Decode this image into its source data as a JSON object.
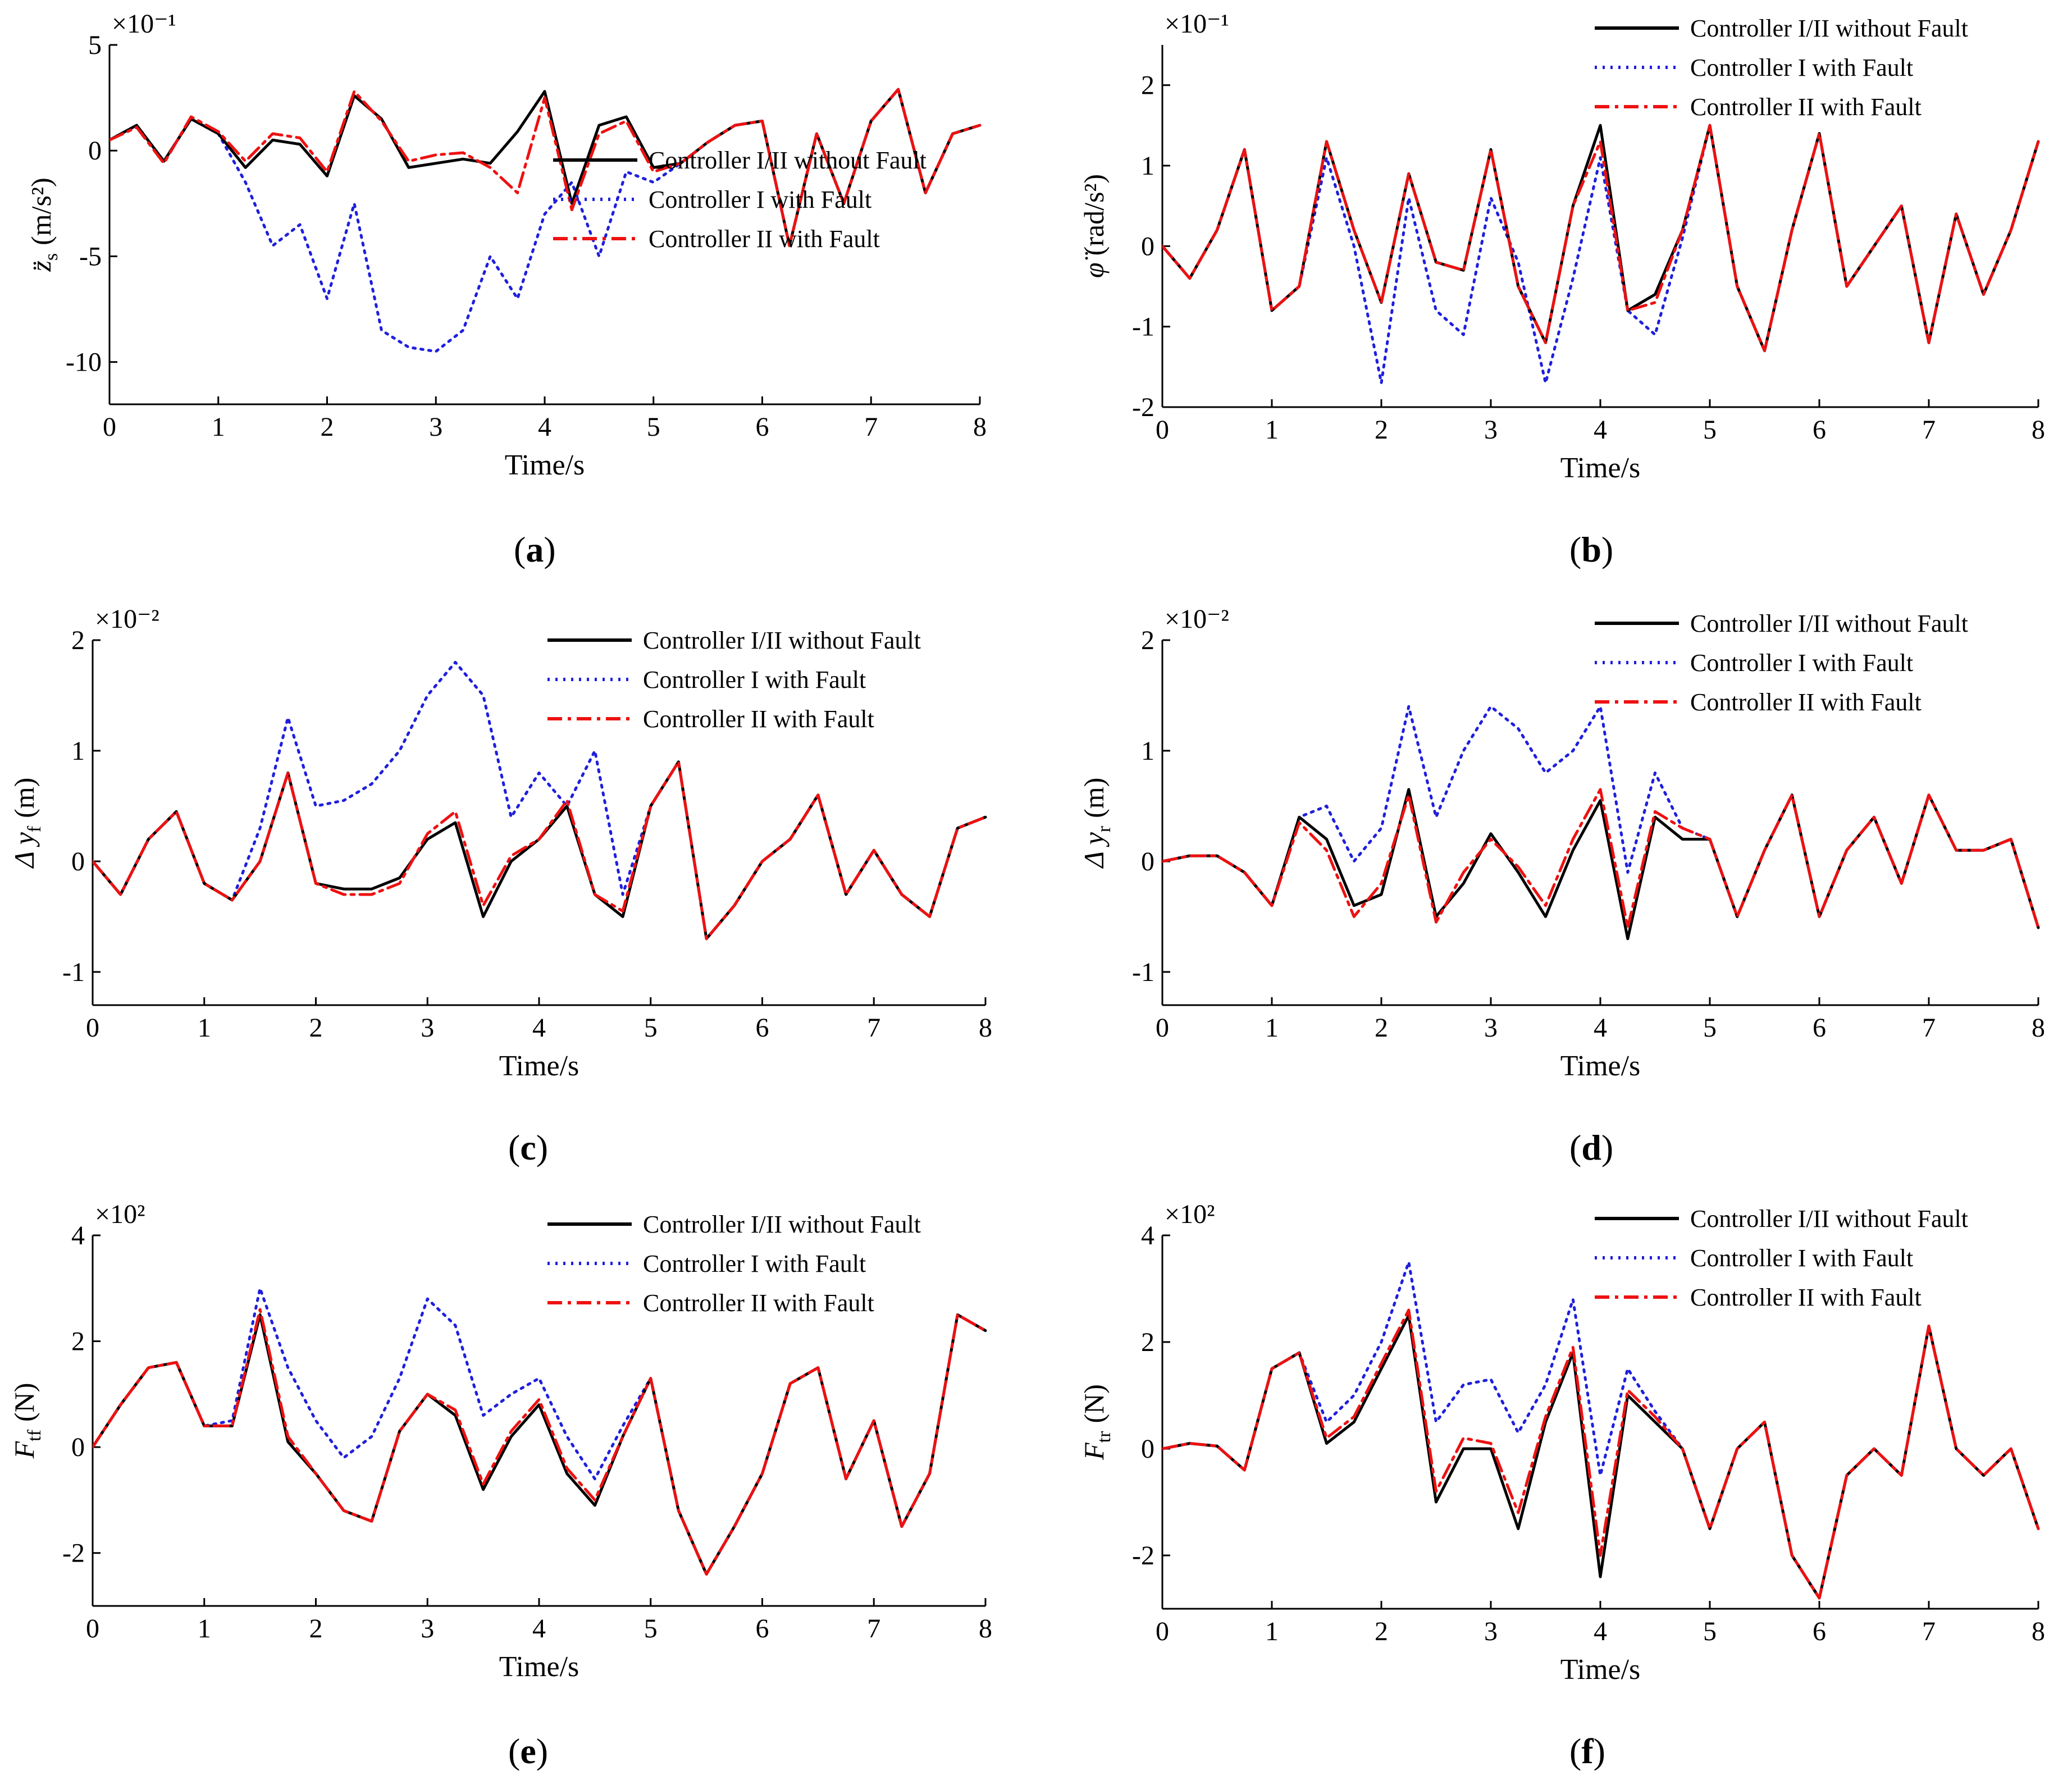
{
  "figure": {
    "x_axis_label": "Time/s",
    "legend_labels": [
      "Controller I/II without Fault",
      "Controller I with Fault",
      "Controller II with Fault"
    ],
    "colors": {
      "without_fault": "#000000",
      "controller_I_fault": "#1f1fdd",
      "controller_II_fault": "#ee1111"
    }
  },
  "chart_data": [
    {
      "id": "a",
      "type": "line",
      "caption": "a",
      "ylabel_main": "z̈",
      "ylabel_sub": "s",
      "ylabel_unit": "(m/s²)",
      "exponent": "×10⁻¹",
      "xlim": [
        0,
        8
      ],
      "ylim": [
        -12,
        5
      ],
      "xticks": [
        0,
        1,
        2,
        3,
        4,
        5,
        6,
        7,
        8
      ],
      "yticks": [
        5,
        0,
        -5,
        -10
      ],
      "legend_position": "center-right",
      "x": [
        0,
        0.25,
        0.5,
        0.75,
        1,
        1.25,
        1.5,
        1.75,
        2,
        2.25,
        2.5,
        2.75,
        3,
        3.25,
        3.5,
        3.75,
        4,
        4.25,
        4.5,
        4.75,
        5,
        5.25,
        5.5,
        5.75,
        6,
        6.25,
        6.5,
        6.75,
        7,
        7.25,
        7.5,
        7.75,
        8
      ],
      "series": [
        {
          "name": "Controller I/II without Fault",
          "values": [
            0.5,
            1.2,
            -0.5,
            1.5,
            0.8,
            -0.8,
            0.5,
            0.3,
            -1.2,
            2.6,
            1.5,
            -0.8,
            -0.6,
            -0.4,
            -0.6,
            0.9,
            2.8,
            -2.5,
            1.2,
            1.6,
            -0.8,
            -0.6,
            0.4,
            1.2,
            1.4,
            -4.5,
            0.8,
            -2.5,
            1.4,
            2.9,
            -2,
            0.8,
            1.2
          ]
        },
        {
          "name": "Controller I with Fault",
          "values": [
            0.5,
            1.2,
            -0.5,
            1.5,
            0.8,
            -1.5,
            -4.5,
            -3.5,
            -7,
            -2.5,
            -8.5,
            -9.3,
            -9.5,
            -8.5,
            -5,
            -7,
            -3,
            -1.5,
            -5,
            -1,
            -1.5,
            -0.6,
            0.4,
            1.2,
            1.4,
            -4.5,
            0.8,
            -2.5,
            1.4,
            2.9,
            -2,
            0.8,
            1.2
          ]
        },
        {
          "name": "Controller II with Fault",
          "values": [
            0.5,
            1.1,
            -0.6,
            1.6,
            0.9,
            -0.5,
            0.8,
            0.6,
            -1,
            2.8,
            1.4,
            -0.5,
            -0.2,
            -0.1,
            -0.8,
            -2,
            2.5,
            -2.8,
            0.8,
            1.4,
            -1,
            -0.6,
            0.4,
            1.2,
            1.4,
            -4.5,
            0.8,
            -2.5,
            1.4,
            2.9,
            -2,
            0.8,
            1.2
          ]
        }
      ]
    },
    {
      "id": "b",
      "type": "line",
      "caption": "b",
      "ylabel_main": "φ̈",
      "ylabel_sub": "",
      "ylabel_unit": "(rad/s²)",
      "exponent": "×10⁻¹",
      "xlim": [
        0,
        8
      ],
      "ylim": [
        -2,
        2.5
      ],
      "xticks": [
        0,
        1,
        2,
        3,
        4,
        5,
        6,
        7,
        8
      ],
      "yticks": [
        2,
        1,
        0,
        -1,
        -2
      ],
      "legend_position": "top-right",
      "x": [
        0,
        0.25,
        0.5,
        0.75,
        1,
        1.25,
        1.5,
        1.75,
        2,
        2.25,
        2.5,
        2.75,
        3,
        3.25,
        3.5,
        3.75,
        4,
        4.25,
        4.5,
        4.75,
        5,
        5.25,
        5.5,
        5.75,
        6,
        6.25,
        6.5,
        6.75,
        7,
        7.25,
        7.5,
        7.75,
        8
      ],
      "series": [
        {
          "name": "Controller I/II without Fault",
          "values": [
            0,
            -0.4,
            0.2,
            1.2,
            -0.8,
            -0.5,
            1.3,
            0.2,
            -0.7,
            0.9,
            -0.2,
            -0.3,
            1.2,
            -0.5,
            -1.2,
            0.5,
            1.5,
            -0.8,
            -0.6,
            0.2,
            1.5,
            -0.5,
            -1.3,
            0.2,
            1.4,
            -0.5,
            0,
            0.5,
            -1.2,
            0.4,
            -0.6,
            0.2,
            1.3
          ]
        },
        {
          "name": "Controller I with Fault",
          "values": [
            0,
            -0.4,
            0.2,
            1.2,
            -0.8,
            -0.5,
            1.1,
            0,
            -1.7,
            0.6,
            -0.8,
            -1.1,
            0.6,
            -0.2,
            -1.7,
            -0.4,
            1.1,
            -0.8,
            -1.1,
            0.1,
            1.5,
            -0.5,
            -1.3,
            0.2,
            1.4,
            -0.5,
            0,
            0.5,
            -1.2,
            0.4,
            -0.6,
            0.2,
            1.3
          ]
        },
        {
          "name": "Controller II with Fault",
          "values": [
            0,
            -0.4,
            0.2,
            1.2,
            -0.8,
            -0.5,
            1.3,
            0.2,
            -0.7,
            0.9,
            -0.2,
            -0.3,
            1.2,
            -0.5,
            -1.2,
            0.5,
            1.3,
            -0.8,
            -0.7,
            0.2,
            1.5,
            -0.5,
            -1.3,
            0.2,
            1.4,
            -0.5,
            0,
            0.5,
            -1.2,
            0.4,
            -0.6,
            0.2,
            1.3
          ]
        }
      ]
    },
    {
      "id": "c",
      "type": "line",
      "caption": "c",
      "ylabel_main": "Δ y",
      "ylabel_sub": "f",
      "ylabel_unit": "(m)",
      "exponent": "×10⁻²",
      "xlim": [
        0,
        8
      ],
      "ylim": [
        -1.3,
        2
      ],
      "xticks": [
        0,
        1,
        2,
        3,
        4,
        5,
        6,
        7,
        8
      ],
      "yticks": [
        2,
        1,
        0,
        -1
      ],
      "legend_position": "top-right",
      "x": [
        0,
        0.25,
        0.5,
        0.75,
        1,
        1.25,
        1.5,
        1.75,
        2,
        2.25,
        2.5,
        2.75,
        3,
        3.25,
        3.5,
        3.75,
        4,
        4.25,
        4.5,
        4.75,
        5,
        5.25,
        5.5,
        5.75,
        6,
        6.25,
        6.5,
        6.75,
        7,
        7.25,
        7.5,
        7.75,
        8
      ],
      "series": [
        {
          "name": "Controller I/II without Fault",
          "values": [
            0,
            -0.3,
            0.2,
            0.45,
            -0.2,
            -0.35,
            0,
            0.8,
            -0.2,
            -0.25,
            -0.25,
            -0.15,
            0.2,
            0.35,
            -0.5,
            0,
            0.2,
            0.5,
            -0.3,
            -0.5,
            0.5,
            0.9,
            -0.7,
            -0.4,
            0,
            0.2,
            0.6,
            -0.3,
            0.1,
            -0.3,
            -0.5,
            0.3,
            0.4
          ]
        },
        {
          "name": "Controller I with Fault",
          "values": [
            0,
            -0.3,
            0.2,
            0.45,
            -0.2,
            -0.35,
            0.3,
            1.3,
            0.5,
            0.55,
            0.7,
            1,
            1.5,
            1.8,
            1.5,
            0.4,
            0.8,
            0.5,
            1,
            -0.3,
            0.5,
            0.9,
            -0.7,
            -0.4,
            0,
            0.2,
            0.6,
            -0.3,
            0.1,
            -0.3,
            -0.5,
            0.3,
            0.4
          ]
        },
        {
          "name": "Controller II with Fault",
          "values": [
            0,
            -0.3,
            0.2,
            0.45,
            -0.2,
            -0.35,
            0,
            0.8,
            -0.2,
            -0.3,
            -0.3,
            -0.2,
            0.25,
            0.45,
            -0.4,
            0.05,
            0.2,
            0.55,
            -0.3,
            -0.45,
            0.5,
            0.9,
            -0.7,
            -0.4,
            0,
            0.2,
            0.6,
            -0.3,
            0.1,
            -0.3,
            -0.5,
            0.3,
            0.4
          ]
        }
      ]
    },
    {
      "id": "d",
      "type": "line",
      "caption": "d",
      "ylabel_main": "Δ y",
      "ylabel_sub": "r",
      "ylabel_unit": "(m)",
      "exponent": "×10⁻²",
      "xlim": [
        0,
        8
      ],
      "ylim": [
        -1.3,
        2
      ],
      "xticks": [
        0,
        1,
        2,
        3,
        4,
        5,
        6,
        7,
        8
      ],
      "yticks": [
        2,
        1,
        0,
        -1
      ],
      "legend_position": "top-right",
      "x": [
        0,
        0.25,
        0.5,
        0.75,
        1,
        1.25,
        1.5,
        1.75,
        2,
        2.25,
        2.5,
        2.75,
        3,
        3.25,
        3.5,
        3.75,
        4,
        4.25,
        4.5,
        4.75,
        5,
        5.25,
        5.5,
        5.75,
        6,
        6.25,
        6.5,
        6.75,
        7,
        7.25,
        7.5,
        7.75,
        8
      ],
      "series": [
        {
          "name": "Controller I/II without Fault",
          "values": [
            0,
            0.05,
            0.05,
            -0.1,
            -0.4,
            0.4,
            0.2,
            -0.4,
            -0.3,
            0.65,
            -0.5,
            -0.2,
            0.25,
            -0.1,
            -0.5,
            0.1,
            0.55,
            -0.7,
            0.4,
            0.2,
            0.2,
            -0.5,
            0.1,
            0.6,
            -0.5,
            0.1,
            0.4,
            -0.2,
            0.6,
            0.1,
            0.1,
            0.2,
            -0.6
          ]
        },
        {
          "name": "Controller I with Fault",
          "values": [
            0,
            0.05,
            0.05,
            -0.1,
            -0.4,
            0.4,
            0.5,
            0,
            0.3,
            1.4,
            0.4,
            1,
            1.4,
            1.2,
            0.8,
            1,
            1.4,
            -0.1,
            0.8,
            0.3,
            0.2,
            -0.5,
            0.1,
            0.6,
            -0.5,
            0.1,
            0.4,
            -0.2,
            0.6,
            0.1,
            0.1,
            0.2,
            -0.6
          ]
        },
        {
          "name": "Controller II with Fault",
          "values": [
            0,
            0.05,
            0.05,
            -0.1,
            -0.4,
            0.35,
            0.1,
            -0.5,
            -0.2,
            0.6,
            -0.55,
            -0.1,
            0.2,
            -0.05,
            -0.4,
            0.2,
            0.65,
            -0.6,
            0.45,
            0.3,
            0.2,
            -0.5,
            0.1,
            0.6,
            -0.5,
            0.1,
            0.4,
            -0.2,
            0.6,
            0.1,
            0.1,
            0.2,
            -0.6
          ]
        }
      ]
    },
    {
      "id": "e",
      "type": "line",
      "caption": "e",
      "ylabel_main": "F",
      "ylabel_sub": "tf",
      "ylabel_unit": "(N)",
      "exponent": "×10²",
      "xlim": [
        0,
        8
      ],
      "ylim": [
        -3,
        4
      ],
      "xticks": [
        0,
        1,
        2,
        3,
        4,
        5,
        6,
        7,
        8
      ],
      "yticks": [
        4,
        2,
        0,
        -2
      ],
      "legend_position": "top-right",
      "x": [
        0,
        0.25,
        0.5,
        0.75,
        1,
        1.25,
        1.5,
        1.75,
        2,
        2.25,
        2.5,
        2.75,
        3,
        3.25,
        3.5,
        3.75,
        4,
        4.25,
        4.5,
        4.75,
        5,
        5.25,
        5.5,
        5.75,
        6,
        6.25,
        6.5,
        6.75,
        7,
        7.25,
        7.5,
        7.75,
        8
      ],
      "series": [
        {
          "name": "Controller I/II without Fault",
          "values": [
            0,
            0.8,
            1.5,
            1.6,
            0.4,
            0.4,
            2.5,
            0.1,
            -0.5,
            -1.2,
            -1.4,
            0.3,
            1,
            0.6,
            -0.8,
            0.2,
            0.8,
            -0.5,
            -1.1,
            0.2,
            1.3,
            -1.2,
            -2.4,
            -1.5,
            -0.5,
            1.2,
            1.5,
            -0.6,
            0.5,
            -1.5,
            -0.5,
            2.5,
            2.2
          ]
        },
        {
          "name": "Controller I with Fault",
          "values": [
            0,
            0.8,
            1.5,
            1.6,
            0.4,
            0.5,
            3,
            1.5,
            0.5,
            -0.2,
            0.2,
            1.3,
            2.8,
            2.3,
            0.6,
            1,
            1.3,
            0.2,
            -0.6,
            0.4,
            1.3,
            -1.2,
            -2.4,
            -1.5,
            -0.5,
            1.2,
            1.5,
            -0.6,
            0.5,
            -1.5,
            -0.5,
            2.5,
            2.2
          ]
        },
        {
          "name": "Controller II with Fault",
          "values": [
            0,
            0.8,
            1.5,
            1.6,
            0.4,
            0.4,
            2.6,
            0.2,
            -0.5,
            -1.2,
            -1.4,
            0.3,
            1,
            0.7,
            -0.7,
            0.3,
            0.9,
            -0.4,
            -1,
            0.2,
            1.3,
            -1.2,
            -2.4,
            -1.5,
            -0.5,
            1.2,
            1.5,
            -0.6,
            0.5,
            -1.5,
            -0.5,
            2.5,
            2.2
          ]
        }
      ]
    },
    {
      "id": "f",
      "type": "line",
      "caption": "f",
      "ylabel_main": "F",
      "ylabel_sub": "tr",
      "ylabel_unit": "(N)",
      "exponent": "×10²",
      "xlim": [
        0,
        8
      ],
      "ylim": [
        -3,
        4
      ],
      "xticks": [
        0,
        1,
        2,
        3,
        4,
        5,
        6,
        7,
        8
      ],
      "yticks": [
        4,
        2,
        0,
        -2
      ],
      "legend_position": "top-right",
      "x": [
        0,
        0.25,
        0.5,
        0.75,
        1,
        1.25,
        1.5,
        1.75,
        2,
        2.25,
        2.5,
        2.75,
        3,
        3.25,
        3.5,
        3.75,
        4,
        4.25,
        4.5,
        4.75,
        5,
        5.25,
        5.5,
        5.75,
        6,
        6.25,
        6.5,
        6.75,
        7,
        7.25,
        7.5,
        7.75,
        8
      ],
      "series": [
        {
          "name": "Controller I/II without Fault",
          "values": [
            0,
            0.1,
            0.05,
            -0.4,
            1.5,
            1.8,
            0.1,
            0.5,
            1.5,
            2.5,
            -1,
            0,
            0,
            -1.5,
            0.5,
            1.8,
            -2.4,
            1,
            0.5,
            0,
            -1.5,
            0,
            0.5,
            -2,
            -2.8,
            -0.5,
            0,
            -0.5,
            2.3,
            0,
            -0.5,
            0,
            -1.5
          ]
        },
        {
          "name": "Controller I with Fault",
          "values": [
            0,
            0.1,
            0.05,
            -0.4,
            1.5,
            1.8,
            0.5,
            1,
            2,
            3.5,
            0.5,
            1.2,
            1.3,
            0.3,
            1.2,
            2.8,
            -0.5,
            1.5,
            0.7,
            0,
            -1.5,
            0,
            0.5,
            -2,
            -2.8,
            -0.5,
            0,
            -0.5,
            2.3,
            0,
            -0.5,
            0,
            -1.5
          ]
        },
        {
          "name": "Controller II with Fault",
          "values": [
            0,
            0.1,
            0.05,
            -0.4,
            1.5,
            1.8,
            0.2,
            0.6,
            1.6,
            2.6,
            -0.8,
            0.2,
            0.1,
            -1.2,
            0.6,
            1.9,
            -2,
            1.1,
            0.6,
            0,
            -1.5,
            0,
            0.5,
            -2,
            -2.8,
            -0.5,
            0,
            -0.5,
            2.3,
            0,
            -0.5,
            0,
            -1.5
          ]
        }
      ]
    }
  ]
}
